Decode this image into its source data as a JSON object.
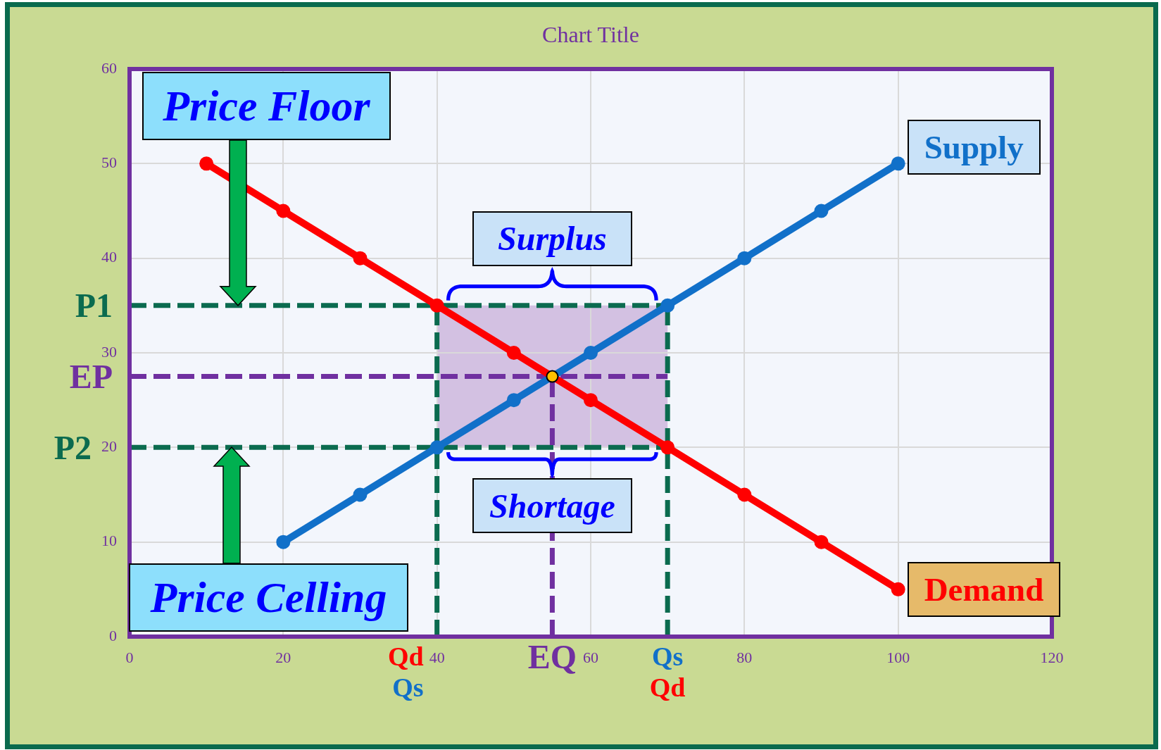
{
  "chart_data": {
    "type": "line",
    "title": "Chart Title",
    "x": [
      10,
      20,
      30,
      40,
      50,
      60,
      70,
      80,
      90,
      100
    ],
    "series": [
      {
        "name": "Demand",
        "color": "#ff0000",
        "values": [
          50,
          45,
          40,
          35,
          30,
          25,
          20,
          15,
          10,
          5
        ]
      },
      {
        "name": "Supply",
        "color": "#1170c9",
        "values": [
          null,
          10,
          15,
          20,
          25,
          30,
          35,
          40,
          45,
          50
        ]
      },
      {
        "type": "scatter",
        "x": [
          55
        ],
        "values": [
          27.5
        ],
        "color": "#ffc000"
      }
    ],
    "xlim": [
      0,
      120
    ],
    "xticks": [
      0,
      20,
      40,
      60,
      80,
      100,
      120
    ],
    "ylim": [
      0,
      60
    ],
    "yticks": [
      0,
      10,
      20,
      30,
      40,
      50,
      60
    ],
    "grid": true,
    "marker": "circle",
    "ref_lines": [
      {
        "axis": "y",
        "value": 35,
        "label": "P1",
        "color": "#0b6b4f",
        "line_style": "dashed"
      },
      {
        "axis": "y",
        "value": 27.5,
        "label": "EP",
        "color": "#7030a0",
        "line_style": "dashed"
      },
      {
        "axis": "y",
        "value": 20,
        "label": "P2",
        "color": "#0b6b4f",
        "line_style": "dashed"
      },
      {
        "axis": "x",
        "value": 40,
        "color": "#0b6b4f",
        "line_style": "dashed"
      },
      {
        "axis": "x",
        "value": 70,
        "color": "#0b6b4f",
        "line_style": "dashed"
      },
      {
        "axis": "x",
        "value": 55,
        "label": "EQ",
        "color": "#7030a0",
        "line_style": "dashed"
      }
    ],
    "bands": [
      {
        "axis": "y",
        "from": 20,
        "to": 35,
        "color": "#d3c1e2"
      }
    ],
    "annotations": [
      "Price Floor",
      "Price Celling",
      "Surplus",
      "Shortage",
      "Qd",
      "Qs",
      "Qs",
      "Qd"
    ]
  }
}
